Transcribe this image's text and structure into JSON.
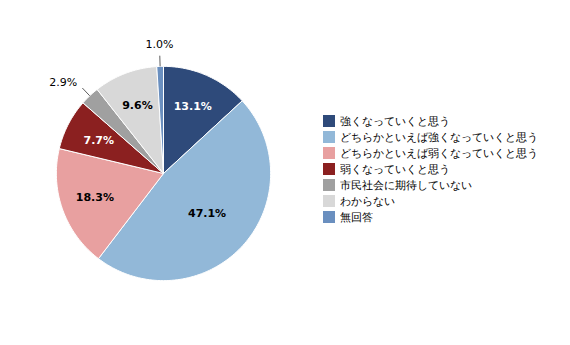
{
  "chart_data": {
    "type": "pie",
    "categories": [
      "強くなっていくと思う",
      "どちらかといえば強くなっていくと思う",
      "どちらかといえば弱くなっていくと思う",
      "弱くなっていくと思う",
      "市民社会に期待していない",
      "わからない",
      "無回答"
    ],
    "values": [
      13.1,
      47.1,
      18.3,
      7.7,
      2.9,
      9.6,
      1.0
    ],
    "value_labels": [
      "13.1%",
      "47.1%",
      "18.3%",
      "7.7%",
      "2.9%",
      "9.6%",
      "1.0%"
    ],
    "colors": [
      "#2e4a7a",
      "#92b8d8",
      "#e8a0a0",
      "#8b2020",
      "#a0a0a0",
      "#d8d8d8",
      "#6a8fbf"
    ],
    "data_labels": true,
    "legend": "right"
  }
}
